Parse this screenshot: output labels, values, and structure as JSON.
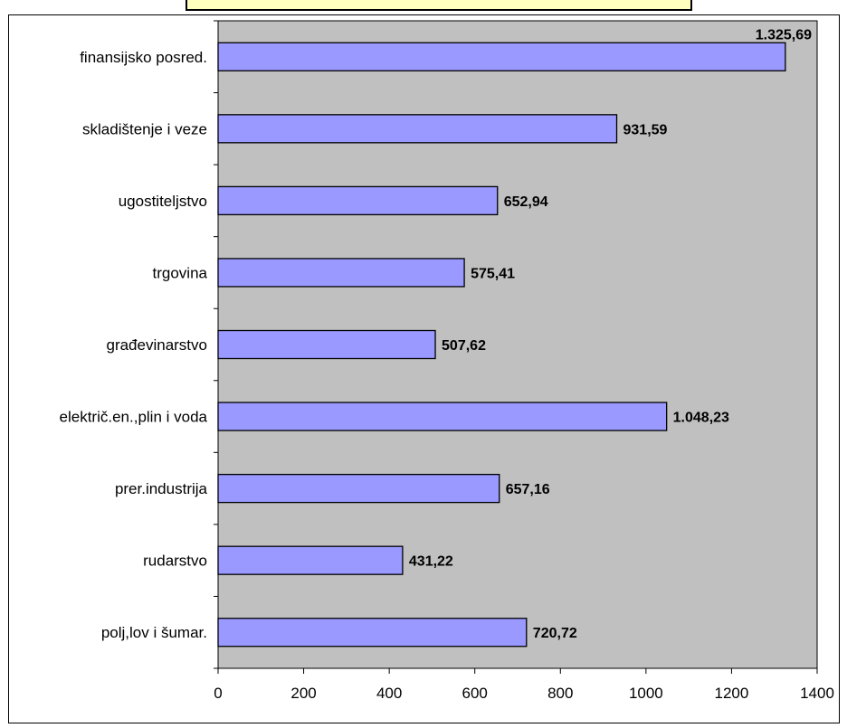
{
  "chart_data": {
    "type": "bar",
    "orientation": "horizontal",
    "categories": [
      "polj,lov i šumar.",
      "rudarstvo",
      "prer.industrija",
      "električ.en.,plin i voda",
      "građevinarstvo",
      "trgovina",
      "ugostiteljstvo",
      "skladištenje i veze",
      "finansijsko posred."
    ],
    "values": [
      720.72,
      431.22,
      657.16,
      1048.23,
      507.62,
      575.41,
      652.94,
      931.59,
      1325.69
    ],
    "value_labels": [
      "720,72",
      "431,22",
      "657,16",
      "1.048,23",
      "507,62",
      "575,41",
      "652,94",
      "931,59",
      "1.325,69"
    ],
    "x_ticks": [
      "0",
      "200",
      "400",
      "600",
      "800",
      "1000",
      "1200",
      "1400"
    ],
    "xlim": [
      0,
      1400
    ],
    "title": "",
    "xlabel": "",
    "ylabel": "",
    "grid": false,
    "legend": "none",
    "colors": {
      "bar_fill": "#9999ff",
      "bar_stroke": "#000000",
      "plot_background": "#c0c0c0",
      "title_box": "#ffffc0"
    }
  }
}
